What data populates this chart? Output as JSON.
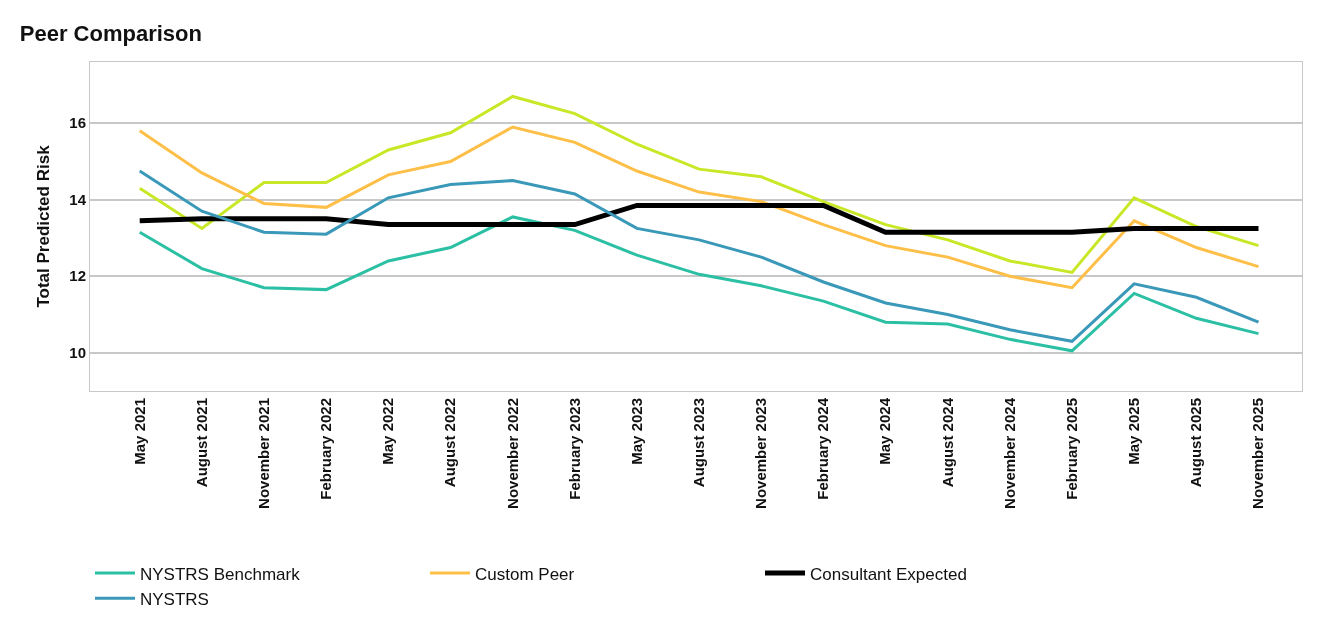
{
  "chart_data": {
    "type": "line",
    "title": "Peer Comparison",
    "ylabel": "Total Predicted Risk",
    "categories": [
      "May 2021",
      "August 2021",
      "November 2021",
      "February 2022",
      "May 2022",
      "August 2022",
      "November 2022",
      "February 2023",
      "May 2023",
      "August 2023",
      "November 2023",
      "February 2024",
      "May 2024",
      "August 2024",
      "November 2024",
      "February 2025",
      "May 2025",
      "August 2025",
      "November 2025"
    ],
    "ylim": [
      9,
      17.6
    ],
    "yticks": [
      10,
      12,
      14,
      16
    ],
    "grid": "y",
    "legend": "bottom",
    "marker": "none",
    "line_style": "solid",
    "series": [
      {
        "name": "NYSTRS Benchmark",
        "color": "#2bbfa4",
        "values": [
          13.15,
          12.2,
          11.7,
          11.65,
          12.4,
          12.75,
          13.55,
          13.2,
          12.55,
          12.05,
          11.75,
          11.35,
          10.8,
          10.75,
          10.35,
          10.05,
          11.55,
          10.9,
          10.5
        ]
      },
      {
        "color": "#c8e827",
        "values": [
          14.3,
          13.25,
          14.45,
          14.45,
          15.3,
          15.75,
          16.7,
          16.25,
          15.45,
          14.8,
          14.6,
          13.95,
          13.35,
          12.95,
          12.4,
          12.1,
          14.05,
          13.3,
          12.8
        ]
      },
      {
        "name": "Custom Peer",
        "color": "#fdbf47",
        "values": [
          15.8,
          14.7,
          13.9,
          13.8,
          14.65,
          15.0,
          15.9,
          15.5,
          14.75,
          14.2,
          13.95,
          13.35,
          12.8,
          12.5,
          12.0,
          11.7,
          13.45,
          12.75,
          12.25
        ]
      },
      {
        "name": "Consultant Expected",
        "color": "#000000",
        "values": [
          13.45,
          13.5,
          13.5,
          13.5,
          13.35,
          13.35,
          13.35,
          13.35,
          13.85,
          13.85,
          13.85,
          13.85,
          13.15,
          13.15,
          13.15,
          13.15,
          13.25,
          13.25,
          13.25
        ]
      },
      {
        "name": "NYSTRS",
        "color": "#3a98b9",
        "values": [
          14.75,
          13.7,
          13.15,
          13.1,
          14.05,
          14.4,
          14.5,
          14.15,
          13.25,
          12.95,
          12.5,
          11.85,
          11.3,
          11.0,
          10.6,
          10.3,
          11.8,
          11.45,
          10.8
        ]
      }
    ]
  }
}
